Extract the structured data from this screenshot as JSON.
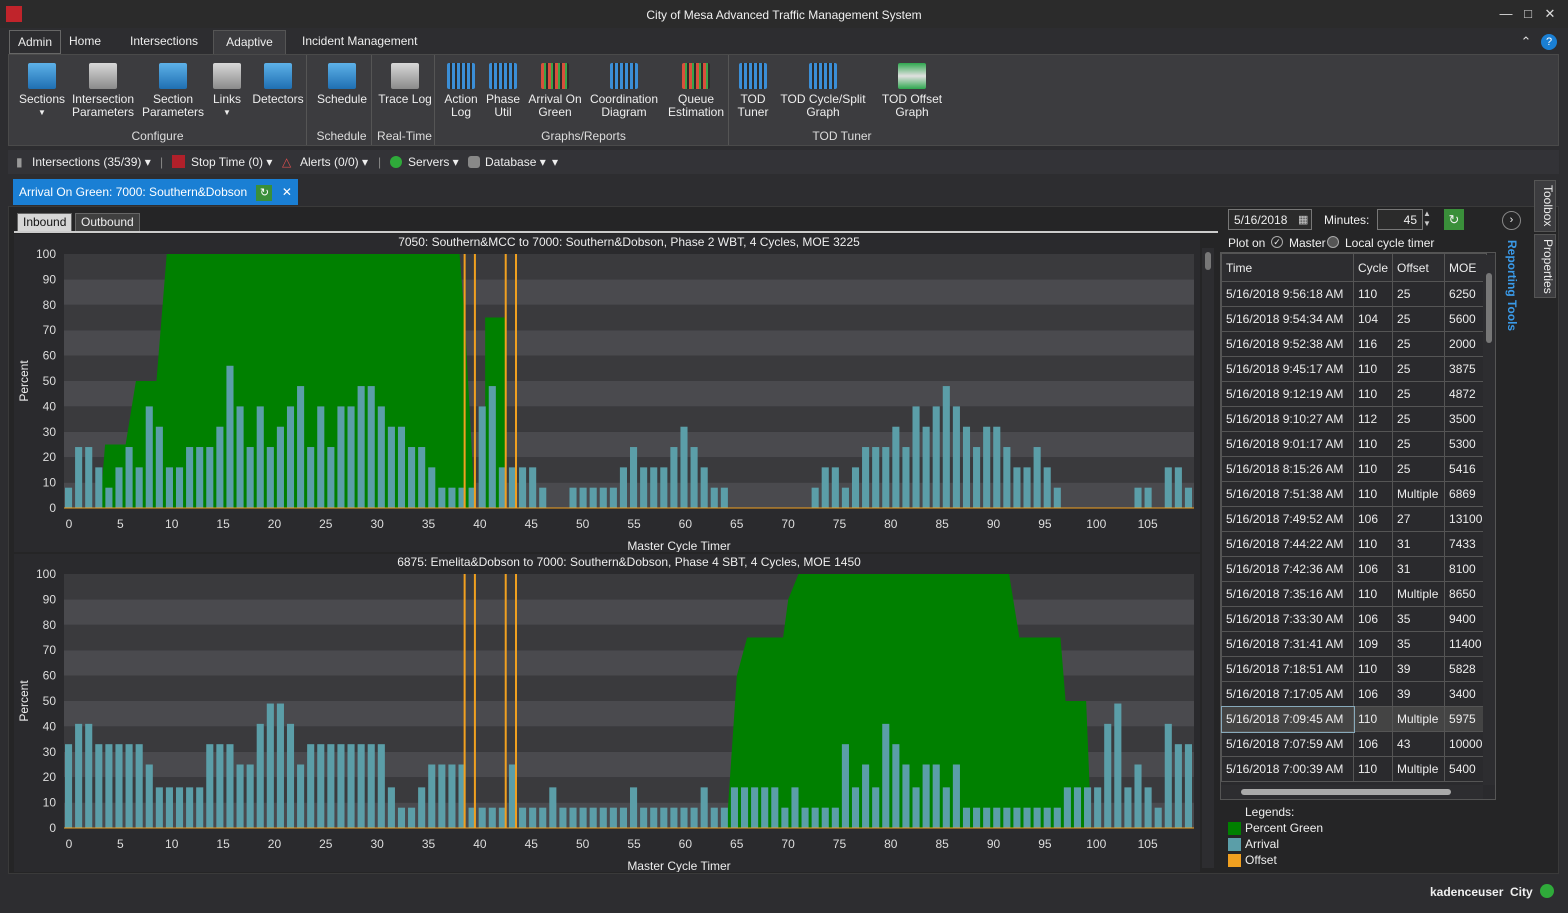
{
  "window": {
    "title": "City of Mesa Advanced Traffic Management System"
  },
  "menu": {
    "items": [
      "Admin",
      "Home",
      "Intersections",
      "Adaptive",
      "Incident Management"
    ],
    "active": 3
  },
  "ribbon": {
    "groups": [
      {
        "label": "Configure",
        "buttons": [
          "Sections",
          "Intersection Parameters",
          "Section Parameters",
          "Links",
          "Detectors"
        ]
      },
      {
        "label": "Schedule",
        "buttons": [
          "Schedule"
        ]
      },
      {
        "label": "Real-Time",
        "buttons": [
          "Trace Log"
        ]
      },
      {
        "label": "Graphs/Reports",
        "buttons": [
          "Action Log",
          "Phase Util",
          "Arrival On Green",
          "Coordination Diagram",
          "Queue Estimation"
        ]
      },
      {
        "label": "TOD Tuner",
        "buttons": [
          "TOD Tuner",
          "TOD Cycle/Split Graph",
          "TOD Offset Graph"
        ]
      }
    ]
  },
  "toolbar": {
    "intersections": "Intersections (35/39)",
    "stop_time": "Stop Time (0)",
    "alerts": "Alerts (0/0)",
    "servers": "Servers",
    "database": "Database"
  },
  "doc_tab": {
    "label": "Arrival On Green: 7000: Southern&Dobson"
  },
  "sub_tabs": [
    "Inbound",
    "Outbound"
  ],
  "colors": {
    "green": "#008000",
    "arrival": "#5b9ea8",
    "offset": "#f0a020",
    "accent": "#1a7fd4"
  },
  "charts": [
    {
      "title": "7050: Southern&MCC to 7000: Southern&Dobson, Phase 2 WBT, 4 Cycles, MOE 3225",
      "xlabel": "Master Cycle Timer",
      "ylabel": "Percent"
    },
    {
      "title": "6875: Emelita&Dobson to 7000: Southern&Dobson, Phase 4 SBT, 4 Cycles, MOE 1450",
      "xlabel": "Master Cycle Timer",
      "ylabel": "Percent"
    }
  ],
  "chart_data": [
    {
      "type": "bar",
      "title": "7050: Southern&MCC to 7000: Southern&Dobson, Phase 2 WBT, 4 Cycles, MOE 3225",
      "xlabel": "Master Cycle Timer",
      "ylabel": "Percent",
      "xlim": [
        0,
        110
      ],
      "ylim": [
        0,
        100
      ],
      "xticks": [
        0,
        5,
        10,
        15,
        20,
        25,
        30,
        35,
        40,
        45,
        50,
        55,
        60,
        65,
        70,
        75,
        80,
        85,
        90,
        95,
        100,
        105
      ],
      "yticks": [
        0,
        10,
        20,
        30,
        40,
        50,
        60,
        70,
        80,
        90,
        100
      ],
      "percent_green": [
        [
          0,
          0
        ],
        [
          3.5,
          0
        ],
        [
          4,
          25
        ],
        [
          6,
          25
        ],
        [
          7,
          50
        ],
        [
          9,
          50
        ],
        [
          10,
          100
        ],
        [
          38.5,
          100
        ],
        [
          39,
          75
        ],
        [
          40,
          0
        ],
        [
          41,
          0
        ],
        [
          41,
          75
        ],
        [
          43,
          75
        ],
        [
          43,
          0
        ]
      ],
      "arrival": [
        8,
        24,
        24,
        16,
        8,
        16,
        24,
        16,
        40,
        32,
        16,
        16,
        24,
        24,
        24,
        32,
        56,
        40,
        24,
        40,
        24,
        32,
        40,
        48,
        24,
        40,
        24,
        40,
        40,
        48,
        48,
        40,
        32,
        32,
        24,
        24,
        16,
        8,
        8,
        8,
        8,
        40,
        48,
        16,
        16,
        16,
        16,
        8,
        0,
        0,
        8,
        8,
        8,
        8,
        8,
        16,
        24,
        16,
        16,
        16,
        24,
        32,
        24,
        16,
        8,
        8,
        0,
        0,
        0,
        0,
        0,
        0,
        0,
        0,
        8,
        16,
        16,
        8,
        16,
        24,
        24,
        24,
        32,
        24,
        40,
        32,
        40,
        48,
        40,
        32,
        24,
        32,
        32,
        24,
        16,
        16,
        24,
        16,
        8,
        0,
        0,
        0,
        0,
        0,
        0,
        0,
        8,
        8,
        0,
        16,
        16,
        8
      ],
      "offset_lines": [
        39,
        40,
        43,
        44
      ]
    },
    {
      "type": "bar",
      "title": "6875: Emelita&Dobson to 7000: Southern&Dobson, Phase 4 SBT, 4 Cycles, MOE 1450",
      "xlabel": "Master Cycle Timer",
      "ylabel": "Percent",
      "xlim": [
        0,
        110
      ],
      "ylim": [
        0,
        100
      ],
      "xticks": [
        0,
        5,
        10,
        15,
        20,
        25,
        30,
        35,
        40,
        45,
        50,
        55,
        60,
        65,
        70,
        75,
        80,
        85,
        90,
        95,
        100,
        105
      ],
      "yticks": [
        0,
        10,
        20,
        30,
        40,
        50,
        60,
        70,
        80,
        90,
        100
      ],
      "percent_green": [
        [
          64.5,
          0
        ],
        [
          65.5,
          60
        ],
        [
          66.5,
          75
        ],
        [
          70,
          75
        ],
        [
          70.5,
          90
        ],
        [
          71.5,
          100
        ],
        [
          92,
          100
        ],
        [
          93,
          75
        ],
        [
          97,
          75
        ],
        [
          97.5,
          50
        ],
        [
          99.5,
          50
        ],
        [
          100,
          0
        ]
      ],
      "arrival": [
        33,
        41,
        41,
        33,
        33,
        33,
        33,
        33,
        25,
        16,
        16,
        16,
        16,
        16,
        33,
        33,
        33,
        25,
        25,
        41,
        49,
        49,
        41,
        25,
        33,
        33,
        33,
        33,
        33,
        33,
        33,
        33,
        16,
        8,
        8,
        16,
        25,
        25,
        25,
        25,
        8,
        8,
        8,
        8,
        25,
        8,
        8,
        8,
        16,
        8,
        8,
        8,
        8,
        8,
        8,
        8,
        16,
        8,
        8,
        8,
        8,
        8,
        8,
        16,
        8,
        8,
        16,
        16,
        16,
        16,
        16,
        8,
        16,
        8,
        8,
        8,
        8,
        33,
        16,
        25,
        16,
        41,
        33,
        25,
        16,
        25,
        25,
        16,
        25,
        8,
        8,
        8,
        8,
        8,
        8,
        8,
        8,
        8,
        8,
        16,
        16,
        16,
        16,
        41,
        49,
        16,
        25,
        16,
        8,
        41,
        33,
        33
      ],
      "offset_lines": [
        39,
        40,
        43,
        44
      ]
    }
  ],
  "panel": {
    "date": "5/16/2018",
    "minutes_label": "Minutes:",
    "minutes_value": "45",
    "plot_on": "Plot on",
    "master": "Master",
    "local": "Local cycle timer",
    "columns": [
      "Time",
      "Cycle",
      "Offset",
      "MOE"
    ],
    "rows": [
      [
        "5/16/2018 9:56:18 AM",
        "110",
        "25",
        "6250"
      ],
      [
        "5/16/2018 9:54:34 AM",
        "104",
        "25",
        "5600"
      ],
      [
        "5/16/2018 9:52:38 AM",
        "116",
        "25",
        "2000"
      ],
      [
        "5/16/2018 9:45:17 AM",
        "110",
        "25",
        "3875"
      ],
      [
        "5/16/2018 9:12:19 AM",
        "110",
        "25",
        "4872"
      ],
      [
        "5/16/2018 9:10:27 AM",
        "112",
        "25",
        "3500"
      ],
      [
        "5/16/2018 9:01:17 AM",
        "110",
        "25",
        "5300"
      ],
      [
        "5/16/2018 8:15:26 AM",
        "110",
        "25",
        "5416"
      ],
      [
        "5/16/2018 7:51:38 AM",
        "110",
        "Multiple",
        "6869"
      ],
      [
        "5/16/2018 7:49:52 AM",
        "106",
        "27",
        "13100"
      ],
      [
        "5/16/2018 7:44:22 AM",
        "110",
        "31",
        "7433"
      ],
      [
        "5/16/2018 7:42:36 AM",
        "106",
        "31",
        "8100"
      ],
      [
        "5/16/2018 7:35:16 AM",
        "110",
        "Multiple",
        "8650"
      ],
      [
        "5/16/2018 7:33:30 AM",
        "106",
        "35",
        "9400"
      ],
      [
        "5/16/2018 7:31:41 AM",
        "109",
        "35",
        "11400"
      ],
      [
        "5/16/2018 7:18:51 AM",
        "110",
        "39",
        "5828"
      ],
      [
        "5/16/2018 7:17:05 AM",
        "106",
        "39",
        "3400"
      ],
      [
        "5/16/2018 7:09:45 AM",
        "110",
        "Multiple",
        "5975"
      ],
      [
        "5/16/2018 7:07:59 AM",
        "106",
        "43",
        "10000"
      ],
      [
        "5/16/2018 7:00:39 AM",
        "110",
        "Multiple",
        "5400"
      ]
    ],
    "selected_row": 17,
    "reporting_tools": "Reporting Tools",
    "legend_title": "Legends:",
    "legend": [
      "Percent Green",
      "Arrival",
      "Offset"
    ]
  },
  "side_tabs": [
    "Toolbox",
    "Properties"
  ],
  "status": {
    "user": "kadenceuser",
    "city": "City"
  }
}
